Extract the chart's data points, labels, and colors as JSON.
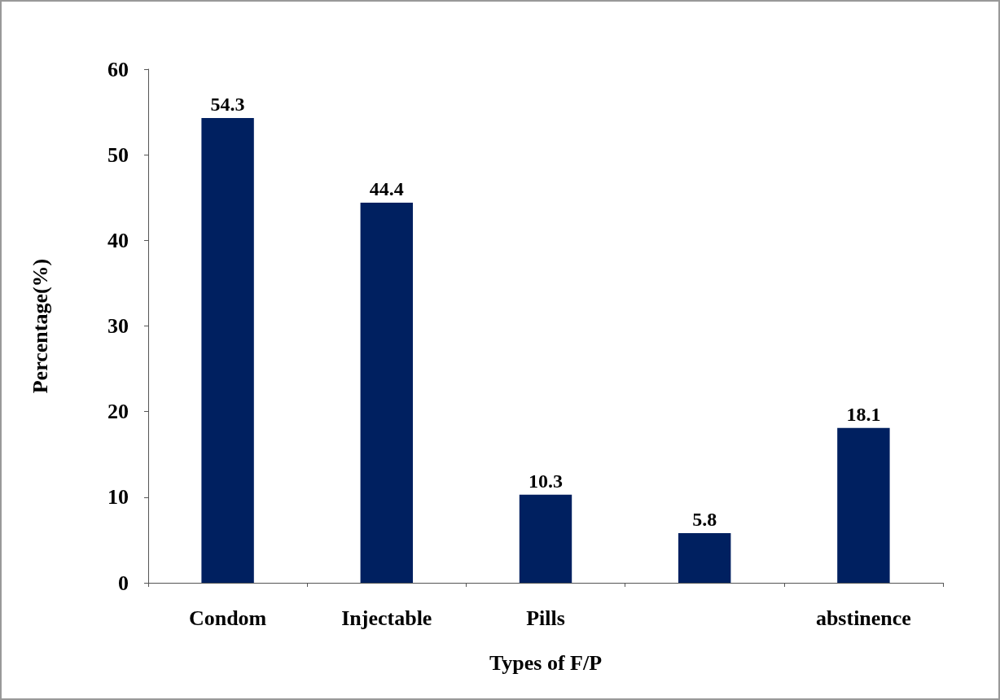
{
  "chart_data": {
    "type": "bar",
    "xlabel": "Types of F/P",
    "ylabel": "Percentage(%)",
    "categories": [
      "Condom",
      "Injectable",
      "Pills",
      null,
      "abstinence"
    ],
    "values": [
      54.3,
      44.4,
      10.3,
      5.8,
      18.1
    ],
    "color": "#002060",
    "ylim": [
      0,
      60
    ],
    "yticks": [
      0,
      10,
      20,
      30,
      40,
      50,
      60
    ],
    "grid": false,
    "data_labels": true
  }
}
